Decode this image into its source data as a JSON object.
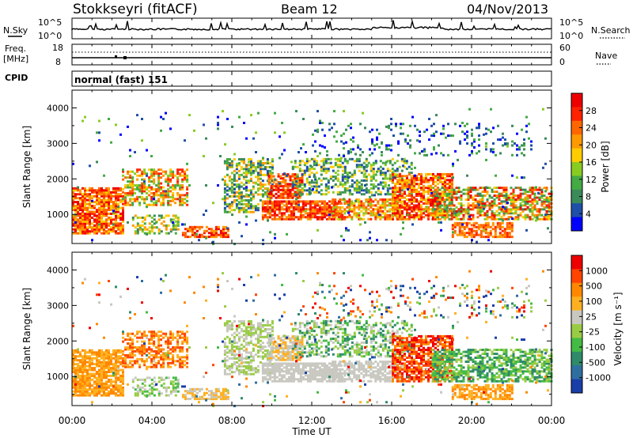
{
  "header": {
    "station": "Stokkseyri (fitACF)",
    "beam": "Beam 12",
    "date": "04/Nov/2013"
  },
  "panels": {
    "nsky_label": "N.Sky",
    "nsearch_label": "N.Search",
    "freq_label": "Freq.",
    "freq_unit": "[MHz]",
    "nave_label": "Nave",
    "cpid_label": "CPID",
    "cpid_value": "normal (fast) 151",
    "left_ticks_top": [
      "10^5",
      "10^0"
    ],
    "right_ticks_top": [
      "10^5",
      "10^0"
    ],
    "left_ticks_freq": [
      "18",
      "8"
    ],
    "right_ticks_nave": [
      "60",
      "0"
    ]
  },
  "colors": {
    "power_scale": [
      "#0000ff",
      "#1f4fa8",
      "#3a8a5a",
      "#44aa44",
      "#88cc22",
      "#ffcc00",
      "#ff9900",
      "#ff6600",
      "#ff2200",
      "#ee0000"
    ],
    "velocity_scale": [
      "#1a3ea8",
      "#2f6fa0",
      "#2f8a6a",
      "#44bb44",
      "#99cc44",
      "#c8c8c0",
      "#ffb020",
      "#ff8800",
      "#ff4400",
      "#ee0000"
    ]
  },
  "chart_data": [
    {
      "type": "heatmap",
      "title": "",
      "xlabel": "Time UT",
      "ylabel": "Slant Range [km]",
      "colorbar_label": "Power [dB]",
      "xlim": [
        0,
        24
      ],
      "ylim": [
        180,
        4500
      ],
      "x_tick_labels": [
        "00:00",
        "04:00",
        "08:00",
        "12:00",
        "16:00",
        "20:00",
        "00:00"
      ],
      "y_tick_labels": [
        "1000",
        "2000",
        "3000",
        "4000"
      ],
      "colorbar_ticks": [
        "4",
        "8",
        "12",
        "16",
        "20",
        "24",
        "28"
      ]
    },
    {
      "type": "heatmap",
      "title": "",
      "xlabel": "Time UT",
      "ylabel": "Slant Range [km]",
      "colorbar_label": "Velocity [m s⁻¹]",
      "xlim": [
        0,
        24
      ],
      "ylim": [
        180,
        4500
      ],
      "x_tick_labels": [
        "00:00",
        "04:00",
        "08:00",
        "12:00",
        "16:00",
        "20:00",
        "00:00"
      ],
      "y_tick_labels": [
        "1000",
        "2000",
        "3000",
        "4000"
      ],
      "colorbar_ticks": [
        "1000",
        "500",
        "100",
        "25",
        "-25",
        "-100",
        "-500",
        "-1000"
      ]
    }
  ]
}
